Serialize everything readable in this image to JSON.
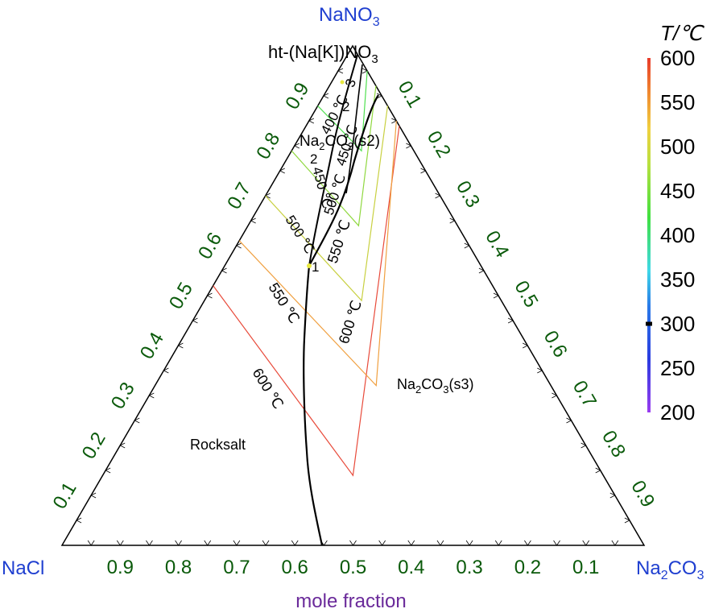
{
  "chart_data": {
    "type": "ternary-phase-diagram",
    "corners": {
      "top": {
        "base": "NaNO",
        "sub": "3"
      },
      "left": {
        "base": "NaCl",
        "sub": ""
      },
      "right": {
        "base": "Na",
        "sub": "2",
        "tail": "CO",
        "sub2": "3"
      }
    },
    "xlabel": "mole fraction",
    "ticks": [
      0.1,
      0.2,
      0.3,
      0.4,
      0.5,
      0.6,
      0.7,
      0.8,
      0.9
    ],
    "tick_labels": [
      "0.1",
      "0.2",
      "0.3",
      "0.4",
      "0.5",
      "0.6",
      "0.7",
      "0.8",
      "0.9"
    ],
    "tick_color": "#0a5a0a",
    "corner_color": "#1f3fd0",
    "xlabel_color": "#6a2a9a",
    "phase_labels": {
      "rocksalt": "Rocksalt",
      "s3": {
        "a": "Na",
        "b": "2",
        "c": "CO",
        "d": "3",
        "e": "(s3)"
      },
      "s2": {
        "a": "Na",
        "b": "2",
        "c": "CO",
        "d": "3",
        "e": "(s2)"
      },
      "ht": "ht-(Na[K])NO",
      "ht_sub": "3"
    },
    "points": {
      "p1": "1",
      "p2a": "2",
      "p2b": "2",
      "p3": "3"
    },
    "isotherms": [
      {
        "T": 600,
        "label": "600 ℃",
        "color": "#e84a3a",
        "left": {
          "a": 0.52,
          "b": 0.0
        },
        "mid": {
          "a": 0.14,
          "b": 0.43
        },
        "right": {
          "a": 0.84,
          "b": 0.16
        }
      },
      {
        "T": 550,
        "label": "550 ℃",
        "color": "#f0a040",
        "left": {
          "a": 0.61,
          "b": 0.0
        },
        "mid": {
          "a": 0.32,
          "b": 0.38
        },
        "right": {
          "a": 0.85,
          "b": 0.15
        }
      },
      {
        "T": 500,
        "label": "500 ℃",
        "color": "#c8d040",
        "left": {
          "a": 0.7,
          "b": 0.0
        },
        "mid": {
          "a": 0.49,
          "b": 0.27
        },
        "right": {
          "a": 0.88,
          "b": 0.12
        }
      },
      {
        "T": 450,
        "label": "450 ℃",
        "color": "#90d840",
        "left": {
          "a": 0.79,
          "b": 0.0
        },
        "mid": {
          "a": 0.64,
          "b": 0.19
        },
        "right": {
          "a": 0.92,
          "b": 0.08
        }
      },
      {
        "T": 400,
        "label": "400 ℃",
        "color": "#50e050",
        "left": {
          "a": 0.88,
          "b": 0.0
        },
        "mid": {
          "a": 0.79,
          "b": 0.12
        },
        "right": {
          "a": 0.95,
          "b": 0.05
        }
      }
    ],
    "boundary_labels": {
      "b600": "600 ℃",
      "b550": "550 ℃",
      "b500": "500 ℃",
      "b450": "450 ℃",
      "b400": "400 ℃"
    },
    "colorbar": {
      "title": "T/℃",
      "min": 200,
      "max": 600,
      "tick_values": [
        600,
        550,
        500,
        450,
        400,
        350,
        300,
        250,
        200
      ],
      "tick_labels": [
        "600",
        "550",
        "500",
        "450",
        "400",
        "350",
        "300",
        "250",
        "200"
      ],
      "marker_value": 300,
      "stops": [
        {
          "v": 200,
          "c": "#9a3cf0"
        },
        {
          "v": 260,
          "c": "#2a3ce0"
        },
        {
          "v": 320,
          "c": "#2a7ae8"
        },
        {
          "v": 360,
          "c": "#40d8e8"
        },
        {
          "v": 420,
          "c": "#40e040"
        },
        {
          "v": 480,
          "c": "#b8e040"
        },
        {
          "v": 520,
          "c": "#f0d040"
        },
        {
          "v": 560,
          "c": "#f08a30"
        },
        {
          "v": 600,
          "c": "#e83a2a"
        }
      ]
    }
  }
}
